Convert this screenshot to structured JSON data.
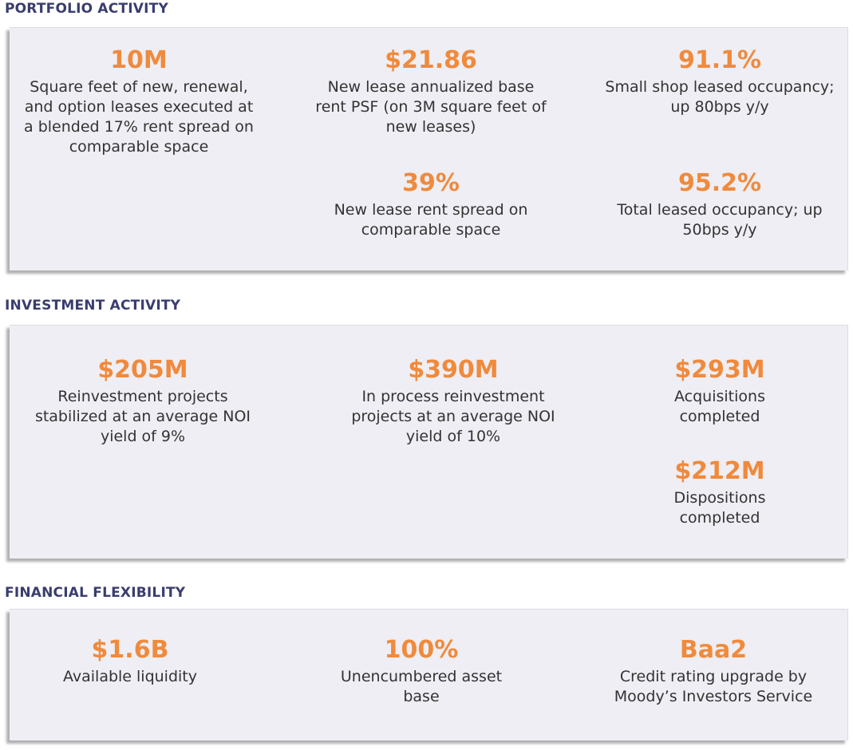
{
  "sections": {
    "portfolio": {
      "title": "PORTFOLIO ACTIVITY",
      "metrics": [
        {
          "value": "10M",
          "desc": "Square feet of new, renewal, and option leases executed at a blended 17% rent spread on comparable space"
        },
        {
          "value": "$21.86",
          "desc": "New lease annualized base rent PSF (on 3M square feet of new leases)"
        },
        {
          "value": "91.1%",
          "desc": "Small shop leased occupancy; up 80bps y/y"
        },
        {
          "value": "39%",
          "desc": "New lease rent spread on comparable space"
        },
        {
          "value": "95.2%",
          "desc": "Total leased occupancy; up 50bps y/y"
        }
      ]
    },
    "investment": {
      "title": "INVESTMENT ACTIVITY",
      "metrics": [
        {
          "value": "$205M",
          "desc": "Reinvestment projects stabilized at an average NOI yield of 9%"
        },
        {
          "value": "$390M",
          "desc": "In process reinvestment projects at an average NOI yield of 10%"
        },
        {
          "value": "$293M",
          "desc": "Acquisitions completed"
        },
        {
          "value": "$212M",
          "desc": "Dispositions completed"
        }
      ]
    },
    "financial": {
      "title": "FINANCIAL FLEXIBILITY",
      "metrics": [
        {
          "value": "$1.6B",
          "desc": "Available liquidity"
        },
        {
          "value": "100%",
          "desc": "Unencumbered asset base"
        },
        {
          "value": "Baa2",
          "desc": "Credit rating upgrade by Moody’s Investors Service"
        }
      ]
    }
  }
}
